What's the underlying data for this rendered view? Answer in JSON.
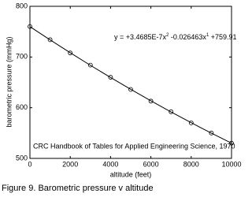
{
  "chart_data": {
    "type": "scatter",
    "x_label": "altitude (feet)",
    "y_label": "barometric pressure (mmHg)",
    "x": [
      0,
      1000,
      2000,
      3000,
      4000,
      5000,
      6000,
      7000,
      8000,
      9000,
      10000
    ],
    "series": [
      {
        "values": [
          760,
          734,
          708,
          684,
          660,
          636,
          613,
          592,
          570,
          550,
          530
        ],
        "color": "#000000",
        "style": "markers"
      },
      {
        "values": [
          759.9,
          733.8,
          708.4,
          683.6,
          659.6,
          636.3,
          613.6,
          591.7,
          570.4,
          549.8,
          530.0
        ],
        "color": "#000000",
        "style": "line"
      }
    ],
    "xlim": [
      0,
      10000
    ],
    "xticks": [
      0,
      2000,
      4000,
      6000,
      8000,
      10000
    ],
    "ylim": [
      500,
      800
    ],
    "yticks": [
      500,
      600,
      700,
      800
    ],
    "equation": [
      "y = +3.4685E-7x",
      "2",
      " -0.026463x",
      "1",
      " +759.91"
    ],
    "source": "CRC Handbook of Tables for Applied Engineering Science, 1970",
    "caption": "Figure 9. Barometric pressure v altitude"
  }
}
